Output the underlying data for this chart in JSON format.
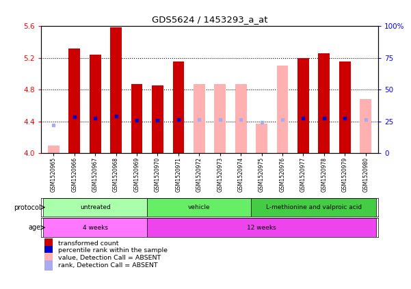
{
  "title": "GDS5624 / 1453293_a_at",
  "samples": [
    "GSM1520965",
    "GSM1520966",
    "GSM1520967",
    "GSM1520968",
    "GSM1520969",
    "GSM1520970",
    "GSM1520971",
    "GSM1520972",
    "GSM1520973",
    "GSM1520974",
    "GSM1520975",
    "GSM1520976",
    "GSM1520977",
    "GSM1520978",
    "GSM1520979",
    "GSM1520980"
  ],
  "bar_values": [
    4.1,
    5.32,
    5.24,
    5.58,
    4.87,
    4.85,
    5.15,
    4.87,
    4.87,
    4.87,
    4.37,
    5.1,
    5.2,
    5.26,
    5.15,
    4.68
  ],
  "bar_absent": [
    true,
    false,
    false,
    false,
    false,
    false,
    false,
    true,
    true,
    true,
    true,
    true,
    false,
    false,
    false,
    true
  ],
  "rank_values": [
    4.35,
    4.46,
    4.44,
    4.47,
    4.41,
    4.41,
    4.42,
    4.42,
    4.42,
    4.42,
    4.39,
    4.42,
    4.44,
    4.44,
    4.44,
    4.42
  ],
  "rank_absent": [
    true,
    false,
    false,
    false,
    false,
    false,
    false,
    true,
    true,
    true,
    true,
    true,
    false,
    false,
    false,
    true
  ],
  "ylim": [
    4.0,
    5.6
  ],
  "ylim_right": [
    0,
    100
  ],
  "color_bar_present": "#cc0000",
  "color_bar_absent": "#ffb0b0",
  "color_rank_present": "#0000cc",
  "color_rank_absent": "#aaaaee",
  "protocol_groups": [
    {
      "label": "untreated",
      "start": 0,
      "end": 4,
      "color": "#aaffaa"
    },
    {
      "label": "vehicle",
      "start": 5,
      "end": 9,
      "color": "#66ee66"
    },
    {
      "label": "L-methionine and valproic acid",
      "start": 10,
      "end": 15,
      "color": "#44cc44"
    }
  ],
  "age_groups": [
    {
      "label": "4 weeks",
      "start": 0,
      "end": 4,
      "color": "#ff77ff"
    },
    {
      "label": "12 weeks",
      "start": 5,
      "end": 15,
      "color": "#ee44ee"
    }
  ],
  "background_color": "#ffffff",
  "dotted_lines": [
    4.4,
    4.8,
    5.2
  ],
  "bar_width": 0.55,
  "legend_items": [
    {
      "color": "#cc0000",
      "label": "transformed count"
    },
    {
      "color": "#0000cc",
      "label": "percentile rank within the sample"
    },
    {
      "color": "#ffb0b0",
      "label": "value, Detection Call = ABSENT"
    },
    {
      "color": "#aaaaee",
      "label": "rank, Detection Call = ABSENT"
    }
  ]
}
